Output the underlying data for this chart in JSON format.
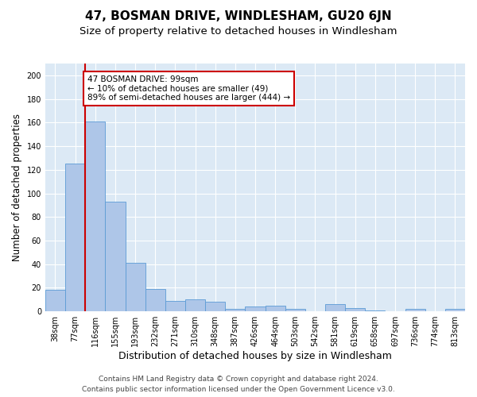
{
  "title": "47, BOSMAN DRIVE, WINDLESHAM, GU20 6JN",
  "subtitle": "Size of property relative to detached houses in Windlesham",
  "xlabel": "Distribution of detached houses by size in Windlesham",
  "ylabel": "Number of detached properties",
  "footer_line1": "Contains HM Land Registry data © Crown copyright and database right 2024.",
  "footer_line2": "Contains public sector information licensed under the Open Government Licence v3.0.",
  "categories": [
    "38sqm",
    "77sqm",
    "116sqm",
    "155sqm",
    "193sqm",
    "232sqm",
    "271sqm",
    "310sqm",
    "348sqm",
    "387sqm",
    "426sqm",
    "464sqm",
    "503sqm",
    "542sqm",
    "581sqm",
    "619sqm",
    "658sqm",
    "697sqm",
    "736sqm",
    "774sqm",
    "813sqm"
  ],
  "values": [
    18,
    125,
    161,
    93,
    41,
    19,
    9,
    10,
    8,
    2,
    4,
    5,
    2,
    0,
    6,
    3,
    1,
    0,
    2,
    0,
    2
  ],
  "bar_color": "#aec6e8",
  "bar_edge_color": "#5b9bd5",
  "background_color": "#dce9f5",
  "grid_color": "#ffffff",
  "vline_color": "#cc0000",
  "annotation_text": "47 BOSMAN DRIVE: 99sqm\n← 10% of detached houses are smaller (49)\n89% of semi-detached houses are larger (444) →",
  "annotation_box_color": "#ffffff",
  "annotation_box_edge": "#cc0000",
  "ylim": [
    0,
    210
  ],
  "yticks": [
    0,
    20,
    40,
    60,
    80,
    100,
    120,
    140,
    160,
    180,
    200
  ],
  "title_fontsize": 11,
  "subtitle_fontsize": 9.5,
  "ylabel_fontsize": 8.5,
  "xlabel_fontsize": 9,
  "tick_fontsize": 7,
  "annotation_fontsize": 7.5,
  "footer_fontsize": 6.5
}
